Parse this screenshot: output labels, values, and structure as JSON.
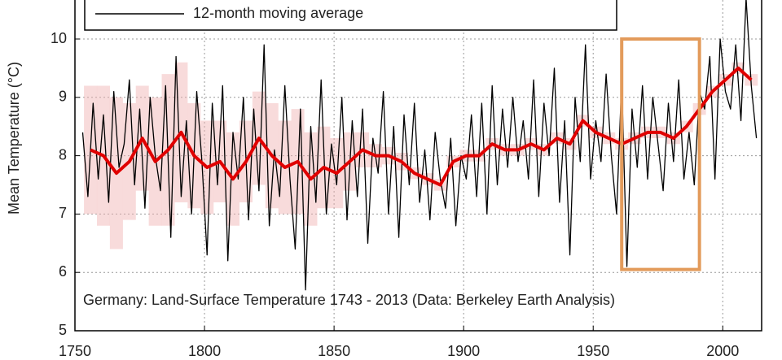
{
  "chart_data": {
    "type": "line",
    "y_label": "Mean Temperature (°C)",
    "annotation": "Germany: Land-Surface Temperature 1743 - 2013 (Data: Berkeley Earth Analysis)",
    "xlim": [
      1750,
      2015
    ],
    "ylim": [
      5,
      11
    ],
    "xticks": [
      1750,
      1800,
      1850,
      1900,
      1950,
      2000
    ],
    "yticks": [
      5,
      6,
      7,
      8,
      9,
      10
    ],
    "grid": true,
    "series": [
      {
        "name": "12-month moving average",
        "color": "#000000",
        "x": [
          1753,
          1755,
          1757,
          1759,
          1761,
          1763,
          1765,
          1767,
          1769,
          1771,
          1773,
          1775,
          1777,
          1779,
          1781,
          1783,
          1785,
          1787,
          1789,
          1791,
          1793,
          1795,
          1797,
          1799,
          1801,
          1803,
          1805,
          1807,
          1809,
          1811,
          1813,
          1815,
          1817,
          1819,
          1821,
          1823,
          1825,
          1827,
          1829,
          1831,
          1833,
          1835,
          1837,
          1839,
          1841,
          1843,
          1845,
          1847,
          1849,
          1851,
          1853,
          1855,
          1857,
          1859,
          1861,
          1863,
          1865,
          1867,
          1869,
          1871,
          1873,
          1875,
          1877,
          1879,
          1881,
          1883,
          1885,
          1887,
          1889,
          1891,
          1893,
          1895,
          1897,
          1899,
          1901,
          1903,
          1905,
          1907,
          1909,
          1911,
          1913,
          1915,
          1917,
          1919,
          1921,
          1923,
          1925,
          1927,
          1929,
          1931,
          1933,
          1935,
          1937,
          1939,
          1941,
          1943,
          1945,
          1947,
          1949,
          1951,
          1953,
          1955,
          1957,
          1959,
          1961,
          1963,
          1965,
          1967,
          1969,
          1971,
          1973,
          1975,
          1977,
          1979,
          1981,
          1983,
          1985,
          1987,
          1989,
          1991,
          1993,
          1995,
          1997,
          1999,
          2001,
          2003,
          2005,
          2007,
          2009,
          2011,
          2013
        ],
        "values": [
          8.4,
          7.3,
          8.9,
          7.6,
          8.7,
          7.2,
          9.1,
          7.8,
          8.2,
          9.3,
          7.5,
          8.8,
          7.1,
          9.0,
          8.0,
          7.4,
          9.2,
          6.6,
          9.7,
          7.3,
          8.6,
          7.0,
          9.1,
          7.9,
          6.3,
          8.9,
          7.5,
          9.2,
          6.2,
          8.4,
          7.6,
          9.0,
          6.9,
          8.8,
          7.4,
          9.9,
          6.8,
          8.1,
          7.3,
          9.2,
          7.6,
          6.4,
          8.8,
          5.7,
          8.5,
          7.2,
          9.3,
          7.0,
          8.2,
          7.5,
          9.0,
          6.9,
          8.6,
          7.3,
          8.8,
          6.5,
          8.3,
          7.7,
          9.1,
          7.0,
          8.5,
          6.6,
          8.7,
          7.5,
          8.9,
          7.2,
          8.1,
          6.9,
          8.4,
          7.6,
          7.1,
          8.3,
          6.8,
          8.0,
          7.6,
          8.7,
          7.3,
          8.9,
          7.0,
          9.2,
          7.5,
          8.8,
          7.8,
          9.0,
          7.9,
          8.6,
          7.6,
          9.3,
          7.3,
          8.9,
          8.0,
          9.5,
          7.2,
          8.6,
          6.3,
          9.0,
          7.9,
          9.9,
          7.6,
          8.6,
          7.9,
          9.4,
          8.0,
          7.0,
          9.3,
          6.1,
          8.8,
          7.8,
          9.2,
          7.6,
          9.0,
          8.2,
          7.4,
          8.9,
          7.9,
          9.3,
          7.6,
          8.4,
          7.5,
          9.1,
          8.8,
          9.7,
          7.6,
          10.0,
          9.1,
          8.8,
          9.9,
          8.6,
          10.7,
          9.2,
          8.3
        ]
      },
      {
        "color": "#e00000",
        "error_color": "#f0b0b0",
        "x": [
          1756,
          1761,
          1766,
          1771,
          1776,
          1781,
          1786,
          1791,
          1796,
          1801,
          1806,
          1811,
          1816,
          1821,
          1826,
          1831,
          1836,
          1841,
          1846,
          1851,
          1856,
          1861,
          1866,
          1871,
          1876,
          1881,
          1886,
          1891,
          1896,
          1901,
          1906,
          1911,
          1916,
          1921,
          1926,
          1931,
          1936,
          1941,
          1946,
          1951,
          1956,
          1961,
          1966,
          1971,
          1976,
          1981,
          1986,
          1991,
          1996,
          2001,
          2006,
          2011
        ],
        "values": [
          8.1,
          8.0,
          7.7,
          7.9,
          8.3,
          7.9,
          8.1,
          8.4,
          8.0,
          7.8,
          7.9,
          7.6,
          7.9,
          8.3,
          8.0,
          7.8,
          7.9,
          7.6,
          7.8,
          7.7,
          7.9,
          8.1,
          8.0,
          8.0,
          7.9,
          7.7,
          7.6,
          7.5,
          7.9,
          8.0,
          8.0,
          8.2,
          8.1,
          8.1,
          8.2,
          8.1,
          8.3,
          8.2,
          8.6,
          8.4,
          8.3,
          8.2,
          8.3,
          8.4,
          8.4,
          8.3,
          8.5,
          8.8,
          9.1,
          9.3,
          9.5,
          9.3
        ],
        "error": [
          1.1,
          1.2,
          1.3,
          1.0,
          0.9,
          1.1,
          1.3,
          1.2,
          0.9,
          0.8,
          0.7,
          0.8,
          0.7,
          0.8,
          0.9,
          0.8,
          0.9,
          0.8,
          0.7,
          0.6,
          0.5,
          0.3,
          0.2,
          0.15,
          0.15,
          0.1,
          0.1,
          0.1,
          0.1,
          0.1,
          0.1,
          0.1,
          0.1,
          0.1,
          0.1,
          0.1,
          0.1,
          0.1,
          0.1,
          0.1,
          0.1,
          0.1,
          0.1,
          0.1,
          0.1,
          0.1,
          0.1,
          0.1,
          0.1,
          0.1,
          0.1,
          0.1
        ]
      }
    ],
    "highlight": {
      "x": [
        1961,
        1991
      ],
      "y": [
        6.05,
        10
      ],
      "color": "#e39b5b"
    }
  }
}
